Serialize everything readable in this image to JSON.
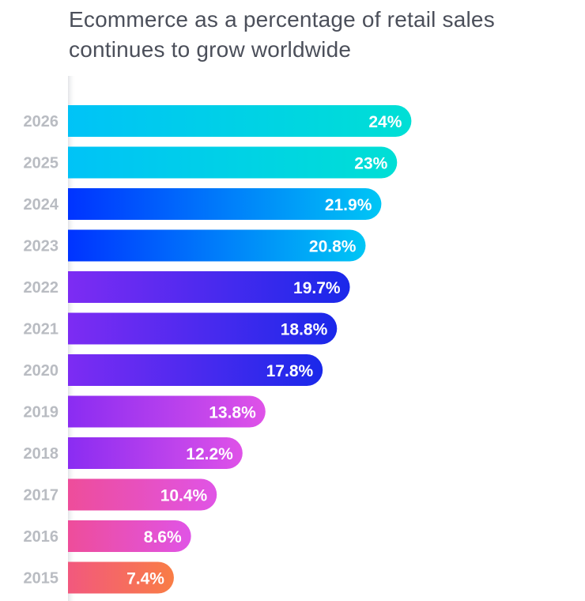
{
  "chart_data": {
    "type": "bar",
    "orientation": "horizontal",
    "title_lines": [
      "Ecommerce as a percentage of retail sales",
      "continues to grow worldwide"
    ],
    "categories": [
      "2026",
      "2025",
      "2024",
      "2023",
      "2022",
      "2021",
      "2020",
      "2019",
      "2018",
      "2017",
      "2016",
      "2015"
    ],
    "values": [
      24,
      23,
      21.9,
      20.8,
      19.7,
      18.8,
      17.8,
      13.8,
      12.2,
      10.4,
      8.6,
      7.4
    ],
    "value_labels": [
      "24%",
      "23%",
      "21.9%",
      "20.8%",
      "19.7%",
      "18.8%",
      "17.8%",
      "13.8%",
      "12.2%",
      "10.4%",
      "8.6%",
      "7.4%"
    ],
    "xlim": [
      0,
      24
    ],
    "grid": false,
    "legend": "none",
    "gradients": [
      [
        "#00c3f7",
        "#00dfd5"
      ],
      [
        "#00c3f7",
        "#00dfd5"
      ],
      [
        "#0033ff",
        "#00c6f5"
      ],
      [
        "#0033ff",
        "#00c6f5"
      ],
      [
        "#7d2cf3",
        "#1a28ea"
      ],
      [
        "#7d2cf3",
        "#1a28ea"
      ],
      [
        "#7d2cf3",
        "#1a28ea"
      ],
      [
        "#8a2cf2",
        "#df52e8"
      ],
      [
        "#8a2cf2",
        "#df52e8"
      ],
      [
        "#ee4d9a",
        "#e054e6"
      ],
      [
        "#ee4d9a",
        "#e054e6"
      ],
      [
        "#f2587e",
        "#f97d45"
      ]
    ]
  }
}
